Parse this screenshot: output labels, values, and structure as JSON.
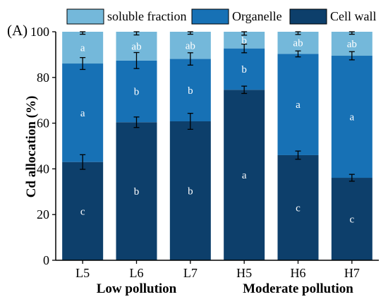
{
  "chart_data": {
    "type": "bar",
    "stacked": true,
    "panel_label": "(A)",
    "ylabel": "Cd allocation (%)",
    "ylim": [
      0,
      100
    ],
    "yticks": [
      0,
      20,
      40,
      60,
      80,
      100
    ],
    "categories": [
      "L5",
      "L6",
      "L7",
      "H5",
      "H6",
      "H7"
    ],
    "groups": [
      {
        "label": "Low pollution",
        "categories": [
          "L5",
          "L6",
          "L7"
        ]
      },
      {
        "label": "Moderate pollution",
        "categories": [
          "H5",
          "H6",
          "H7"
        ]
      }
    ],
    "legend_position": "top",
    "series": [
      {
        "name": "Cell wall",
        "color": "#0d3f6b",
        "values": [
          43.0,
          60.4,
          60.8,
          74.6,
          46.0,
          36.1
        ],
        "errors": [
          3.2,
          2.3,
          3.5,
          1.6,
          1.8,
          1.5
        ],
        "letters": [
          "c",
          "b",
          "b",
          "a",
          "c",
          "c"
        ]
      },
      {
        "name": "Organelle",
        "color": "#1771b5",
        "values": [
          43.1,
          27.0,
          27.3,
          18.1,
          44.3,
          53.4
        ],
        "errors": [
          2.6,
          3.5,
          2.7,
          1.9,
          1.3,
          1.8
        ],
        "letters": [
          "a",
          "b",
          "b",
          "b",
          "a",
          "a"
        ]
      },
      {
        "name": "soluble fraction",
        "color": "#74b8da",
        "values": [
          13.9,
          12.6,
          11.9,
          7.3,
          9.7,
          10.5
        ],
        "errors": [
          1.1,
          1.4,
          1.1,
          1.5,
          1.2,
          1.1
        ],
        "letters": [
          "a",
          "ab",
          "ab",
          "b",
          "ab",
          "ab"
        ]
      }
    ],
    "legend_order": [
      "soluble fraction",
      "Organelle",
      "Cell wall"
    ]
  }
}
